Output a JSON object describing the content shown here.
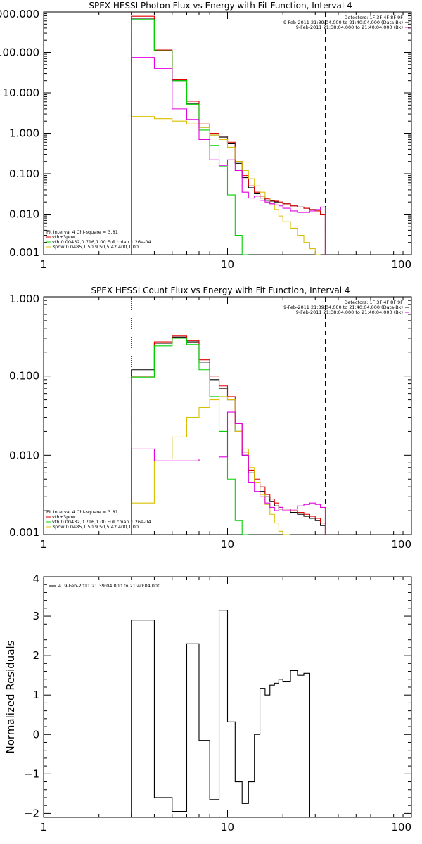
{
  "chart_data": [
    {
      "type": "line",
      "title": "SPEX HESSI Photon Flux vs Energy with Fit Function, Interval 4",
      "xlabel": "",
      "ylabel": "",
      "xscale": "log",
      "yscale": "log",
      "xlim": [
        1,
        100
      ],
      "ylim": [
        0.001,
        1000
      ],
      "x_ticks": [
        1,
        10,
        100
      ],
      "x_tick_labels": [
        "1",
        "10",
        "100"
      ],
      "y_ticks": [
        0.001,
        0.01,
        0.1,
        1,
        10,
        100,
        1000
      ],
      "y_tick_labels": [
        "0.001",
        "0.010",
        "0.100",
        "1.000",
        "10.000",
        "100.000",
        "1000.000"
      ],
      "colors": {
        "data": "#000000",
        "total": "#e00000",
        "vth": "#00d000",
        "3pow": "#d8c000",
        "bk": "#e000e0"
      },
      "annotations_right": [
        "Detectors: 1F 3F 4F 8F 9F",
        "9-Feb-2011 21:39:04.000 to 21:40:04.000 (Data-Bk)",
        "9-Feb-2011 21:38:04.000 to 21:40:04.000 (Bk)"
      ],
      "legend_left": [
        "Fit Interval 4   Chi-square = 3.81",
        "vth+3pow",
        "vth 0.00432,0.716,1.00   Full chian 1.26e-04",
        "3pow 0.0485,1.50,9.50,5.42,400,1.00"
      ],
      "x_edges": [
        3,
        4,
        5,
        6,
        7,
        8,
        9,
        10,
        11,
        12,
        13,
        14,
        15,
        16,
        17,
        18,
        19,
        20,
        22,
        24,
        26,
        28,
        30,
        32,
        34
      ],
      "series": [
        {
          "name": "Data-Bk",
          "color_key": "data",
          "values": [
            700,
            110,
            20,
            5.5,
            1.4,
            0.9,
            0.8,
            0.55,
            0.18,
            0.08,
            0.045,
            0.032,
            0.025,
            0.022,
            0.021,
            0.02,
            0.019,
            0.018,
            0.016,
            0.015,
            0.014,
            0.013,
            0.012,
            0.01
          ]
        },
        {
          "name": "vth+3pow",
          "color_key": "total",
          "values": [
            780,
            115,
            21,
            6.2,
            1.7,
            1.0,
            0.85,
            0.6,
            0.2,
            0.09,
            0.05,
            0.035,
            0.028,
            0.024,
            0.022,
            0.021,
            0.02,
            0.018,
            0.016,
            0.015,
            0.014,
            0.013,
            0.012,
            0.01
          ]
        },
        {
          "name": "vth",
          "color_key": "vth",
          "values": [
            650,
            110,
            20,
            5.2,
            1.2,
            0.5,
            0.15,
            0.03,
            0.003,
            0.0009
          ]
        },
        {
          "name": "3pow",
          "color_key": "3pow",
          "values": [
            2.6,
            2.3,
            2.0,
            1.7,
            1.4,
            0.9,
            0.7,
            0.45,
            0.2,
            0.12,
            0.075,
            0.05,
            0.035,
            0.025,
            0.018,
            0.013,
            0.009,
            0.0065,
            0.0045,
            0.003,
            0.002,
            0.0014,
            0.001
          ]
        },
        {
          "name": "Bk",
          "color_key": "bk",
          "values": [
            75,
            40,
            4.0,
            2.2,
            0.7,
            0.22,
            0.16,
            0.22,
            0.12,
            0.035,
            0.025,
            0.028,
            0.022,
            0.02,
            0.018,
            0.017,
            0.016,
            0.014,
            0.012,
            0.011,
            0.011,
            0.012,
            0.013,
            0.015
          ]
        }
      ],
      "vlines": [
        {
          "x": 3,
          "style": "dotted"
        },
        {
          "x": 34,
          "style": "dashed"
        }
      ]
    },
    {
      "type": "line",
      "title": "SPEX HESSI Count Flux vs Energy with Fit Function, Interval 4",
      "xlabel": "",
      "ylabel": "",
      "xscale": "log",
      "yscale": "log",
      "xlim": [
        1,
        100
      ],
      "ylim": [
        0.001,
        1
      ],
      "x_ticks": [
        1,
        10,
        100
      ],
      "x_tick_labels": [
        "1",
        "10",
        "100"
      ],
      "y_ticks": [
        0.001,
        0.01,
        0.1,
        1
      ],
      "y_tick_labels": [
        "0.001",
        "0.010",
        "0.100",
        "1.000"
      ],
      "colors": {
        "data": "#000000",
        "total": "#e00000",
        "vth": "#00d000",
        "3pow": "#d8c000",
        "bk": "#e000e0"
      },
      "annotations_right": [
        "Detectors: 1F 3F 4F 8F 9F",
        "9-Feb-2011 21:39:04.000 to 21:40:04.000 (Data-Bk)",
        "9-Feb-2011 21:38:04.000 to 21:40:04.000 (Bk)"
      ],
      "legend_left": [
        "Fit Interval 4   Chi-square = 3.81",
        "vth+3pow",
        "vth 0.00432,0.716,1.00   Full chian 1.26e-04",
        "3pow 0.0485,1.50,9.50,5.42,400,1.00"
      ],
      "x_edges": [
        3,
        4,
        5,
        6,
        7,
        8,
        9,
        10,
        11,
        12,
        13,
        14,
        15,
        16,
        17,
        18,
        19,
        20,
        22,
        24,
        26,
        28,
        30,
        32,
        34
      ],
      "series": [
        {
          "name": "Data-Bk",
          "color_key": "data",
          "values": [
            0.12,
            0.26,
            0.31,
            0.27,
            0.15,
            0.09,
            0.07,
            0.05,
            0.02,
            0.01,
            0.006,
            0.0045,
            0.0035,
            0.003,
            0.0026,
            0.0023,
            0.0021,
            0.002,
            0.0019,
            0.0018,
            0.0017,
            0.0016,
            0.0015,
            0.0013
          ]
        },
        {
          "name": "vth+3pow",
          "color_key": "total",
          "values": [
            0.1,
            0.27,
            0.32,
            0.28,
            0.16,
            0.1,
            0.075,
            0.055,
            0.025,
            0.011,
            0.0065,
            0.005,
            0.004,
            0.0032,
            0.0028,
            0.0025,
            0.0022,
            0.0021,
            0.002,
            0.0019,
            0.0018,
            0.0017,
            0.0016,
            0.0014
          ]
        },
        {
          "name": "vth",
          "color_key": "vth",
          "values": [
            0.097,
            0.24,
            0.3,
            0.25,
            0.12,
            0.055,
            0.02,
            0.005,
            0.0015,
            0.0005
          ]
        },
        {
          "name": "3pow",
          "color_key": "3pow",
          "values": [
            0.0025,
            0.009,
            0.017,
            0.03,
            0.04,
            0.05,
            0.055,
            0.05,
            0.02,
            0.012,
            0.007,
            0.0045,
            0.0032,
            0.0024,
            0.0018,
            0.0014,
            0.0011,
            0.0009
          ]
        },
        {
          "name": "Bk",
          "color_key": "bk",
          "values": [
            0.012,
            0.0085,
            0.0085,
            0.0085,
            0.009,
            0.009,
            0.0095,
            0.035,
            0.025,
            0.01,
            0.0045,
            0.0035,
            0.003,
            0.0025,
            0.0022,
            0.002,
            0.0022,
            0.002,
            0.0021,
            0.0023,
            0.0024,
            0.0025,
            0.0024,
            0.0022
          ]
        }
      ],
      "vlines": [
        {
          "x": 3,
          "style": "dotted"
        },
        {
          "x": 34,
          "style": "dashed"
        }
      ]
    },
    {
      "type": "line",
      "title": "",
      "xlabel": "",
      "ylabel": "Normalized Residuals",
      "xscale": "log",
      "yscale": "linear",
      "xlim": [
        1,
        100
      ],
      "ylim": [
        -2.1,
        4
      ],
      "x_ticks": [
        1,
        10,
        100
      ],
      "x_tick_labels": [
        "1",
        "10",
        "100"
      ],
      "y_ticks": [
        -2,
        -1,
        0,
        1,
        2,
        3,
        4
      ],
      "y_tick_labels": [
        "−2",
        "−1",
        "0",
        "1",
        "2",
        "3",
        "4"
      ],
      "legend_left": [
        "4.  9-Feb-2011 21:39:04.000 to 21:40:04.000"
      ],
      "x_edges": [
        3,
        4,
        5,
        6,
        7,
        8,
        9,
        10,
        11,
        12,
        13,
        14,
        15,
        16,
        17,
        18,
        19,
        20,
        22,
        24,
        26,
        28,
        30,
        32,
        34
      ],
      "series": [
        {
          "name": "Residuals",
          "values": [
            2.9,
            -1.6,
            -1.95,
            2.3,
            -0.15,
            -1.65,
            3.15,
            0.32,
            -1.2,
            -1.75,
            -1.2,
            0.0,
            1.17,
            1.0,
            1.25,
            1.3,
            1.4,
            1.35,
            1.62,
            1.5,
            1.55
          ]
        }
      ]
    }
  ]
}
